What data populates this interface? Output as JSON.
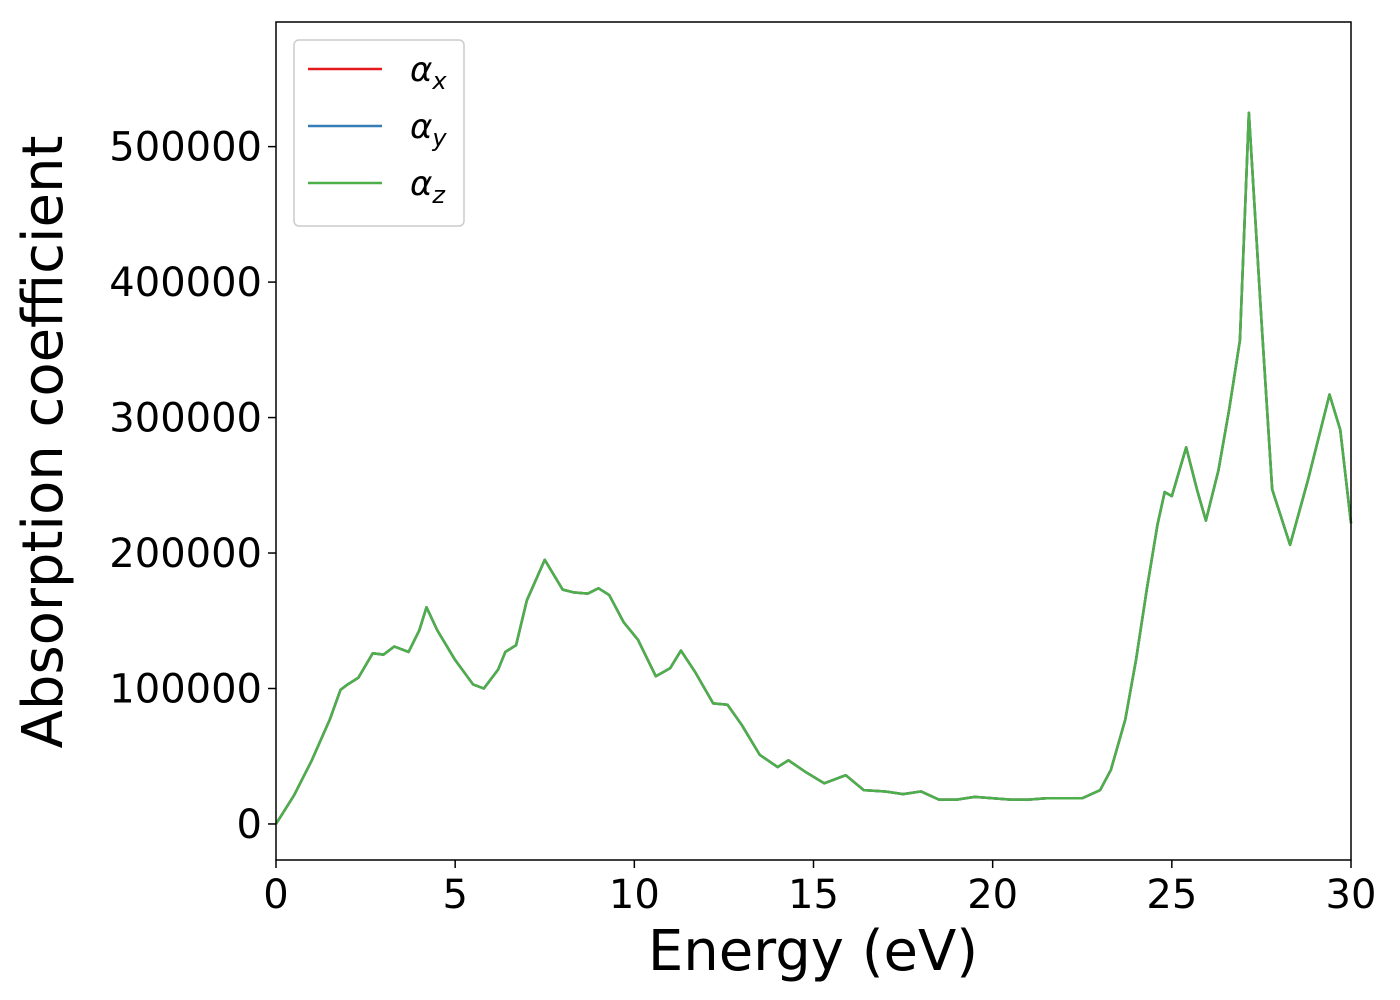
{
  "chart_data": {
    "type": "line",
    "xlabel": "Energy (eV)",
    "ylabel": "Absorption coefficient",
    "x": [
      0,
      0.5,
      1.0,
      1.5,
      1.8,
      2.0,
      2.3,
      2.7,
      3.0,
      3.3,
      3.7,
      4.0,
      4.2,
      4.5,
      5.0,
      5.5,
      5.8,
      6.2,
      6.4,
      6.7,
      7.0,
      7.5,
      8.0,
      8.3,
      8.7,
      9.0,
      9.3,
      9.7,
      10.1,
      10.6,
      11.0,
      11.3,
      11.7,
      12.2,
      12.6,
      13.0,
      13.5,
      14.0,
      14.3,
      14.8,
      15.3,
      15.9,
      16.4,
      17.0,
      17.5,
      18.0,
      18.5,
      19.0,
      19.5,
      20.0,
      20.5,
      21.0,
      21.5,
      22.0,
      22.5,
      23.0,
      23.3,
      23.7,
      24.0,
      24.3,
      24.6,
      24.8,
      25.0,
      25.4,
      25.7,
      25.95,
      26.3,
      26.6,
      26.9,
      27.15,
      27.5,
      27.8,
      28.3,
      28.8,
      29.4,
      29.7,
      30.0
    ],
    "series": [
      {
        "name": "αx",
        "color": "#e41a1c",
        "values": [
          0,
          21000,
          47000,
          77000,
          99000,
          103000,
          108000,
          126000,
          125000,
          131000,
          127000,
          143000,
          160000,
          143000,
          121000,
          103000,
          100000,
          114000,
          127000,
          132000,
          165000,
          195000,
          173000,
          171000,
          170000,
          174000,
          169000,
          149000,
          136000,
          109000,
          115000,
          128000,
          112000,
          89000,
          88000,
          73000,
          51000,
          42000,
          47000,
          38000,
          30000,
          36000,
          25000,
          24000,
          22000,
          24000,
          18000,
          18000,
          20000,
          19000,
          18000,
          18000,
          19000,
          19000,
          19000,
          25000,
          40000,
          77000,
          121000,
          173000,
          221000,
          245000,
          242000,
          278000,
          247000,
          224000,
          261000,
          306000,
          357000,
          525000,
          372000,
          247000,
          206000,
          254000,
          317000,
          291000,
          222000
        ]
      },
      {
        "name": "αy",
        "color": "#377eb8",
        "values": [
          0,
          21000,
          47000,
          77000,
          99000,
          103000,
          108000,
          126000,
          125000,
          131000,
          127000,
          143000,
          160000,
          143000,
          121000,
          103000,
          100000,
          114000,
          127000,
          132000,
          165000,
          195000,
          173000,
          171000,
          170000,
          174000,
          169000,
          149000,
          136000,
          109000,
          115000,
          128000,
          112000,
          89000,
          88000,
          73000,
          51000,
          42000,
          47000,
          38000,
          30000,
          36000,
          25000,
          24000,
          22000,
          24000,
          18000,
          18000,
          20000,
          19000,
          18000,
          18000,
          19000,
          19000,
          19000,
          25000,
          40000,
          77000,
          121000,
          173000,
          221000,
          245000,
          242000,
          278000,
          247000,
          224000,
          261000,
          306000,
          357000,
          525000,
          372000,
          247000,
          206000,
          254000,
          317000,
          291000,
          222000
        ]
      },
      {
        "name": "αz",
        "color": "#4daf4a",
        "values": [
          0,
          21000,
          47000,
          77000,
          99000,
          103000,
          108000,
          126000,
          125000,
          131000,
          127000,
          143000,
          160000,
          143000,
          121000,
          103000,
          100000,
          114000,
          127000,
          132000,
          165000,
          195000,
          173000,
          171000,
          170000,
          174000,
          169000,
          149000,
          136000,
          109000,
          115000,
          128000,
          112000,
          89000,
          88000,
          73000,
          51000,
          42000,
          47000,
          38000,
          30000,
          36000,
          25000,
          24000,
          22000,
          24000,
          18000,
          18000,
          20000,
          19000,
          18000,
          18000,
          19000,
          19000,
          19000,
          25000,
          40000,
          77000,
          121000,
          173000,
          221000,
          245000,
          242000,
          278000,
          247000,
          224000,
          261000,
          306000,
          357000,
          525000,
          372000,
          247000,
          206000,
          254000,
          317000,
          291000,
          222000
        ]
      }
    ],
    "xlim": [
      0,
      30
    ],
    "xticks": [
      0,
      5,
      10,
      15,
      20,
      25,
      30
    ],
    "ylim": [
      -26600,
      592000
    ],
    "yticks": [
      0,
      100000,
      200000,
      300000,
      400000,
      500000
    ],
    "grid": false,
    "legend": "upper left"
  }
}
